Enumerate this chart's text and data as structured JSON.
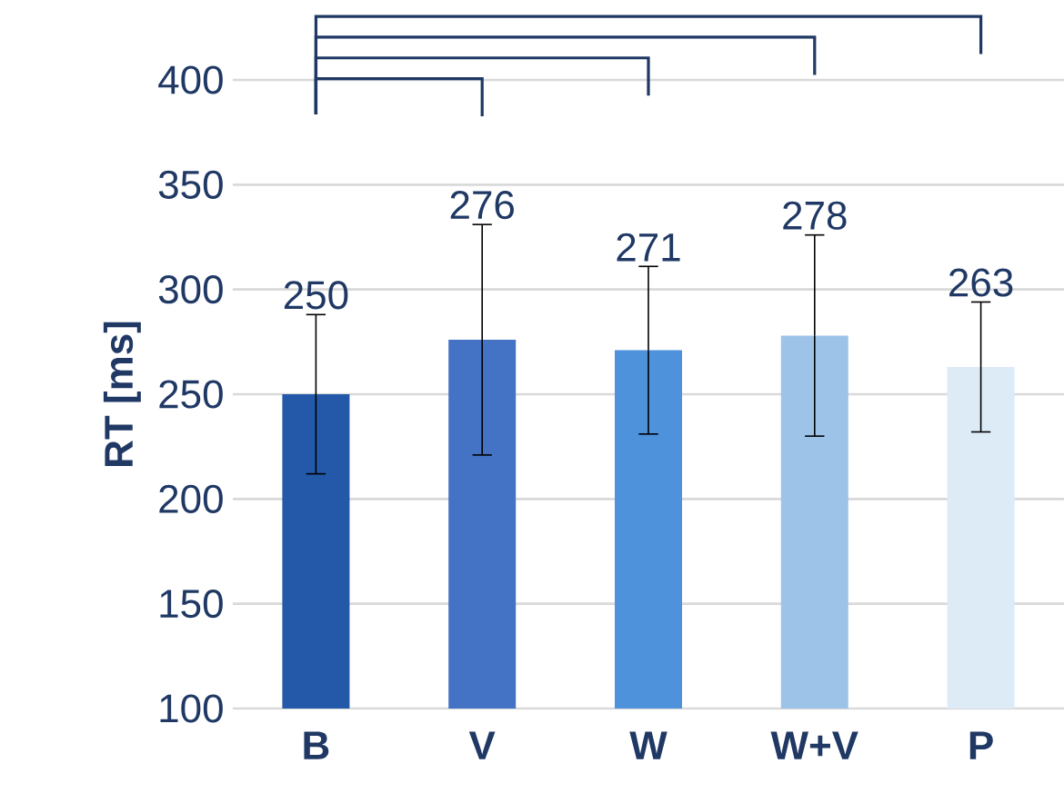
{
  "chart_data": {
    "type": "bar",
    "ylabel": "RT [ms]",
    "categories": [
      "B",
      "V",
      "W",
      "W+V",
      "P"
    ],
    "values": [
      250,
      276,
      271,
      278,
      263
    ],
    "colors": [
      "#2359a8",
      "#4472c4",
      "#4e92dc",
      "#9dc3e9",
      "#ddebf7"
    ],
    "errors": [
      38,
      55,
      40,
      48,
      31
    ],
    "ylim": [
      100,
      400
    ],
    "yticks": [
      100,
      150,
      200,
      250,
      300,
      350,
      400
    ],
    "value_labels": [
      "250",
      "276",
      "271",
      "278",
      "263"
    ],
    "grid": "y"
  }
}
